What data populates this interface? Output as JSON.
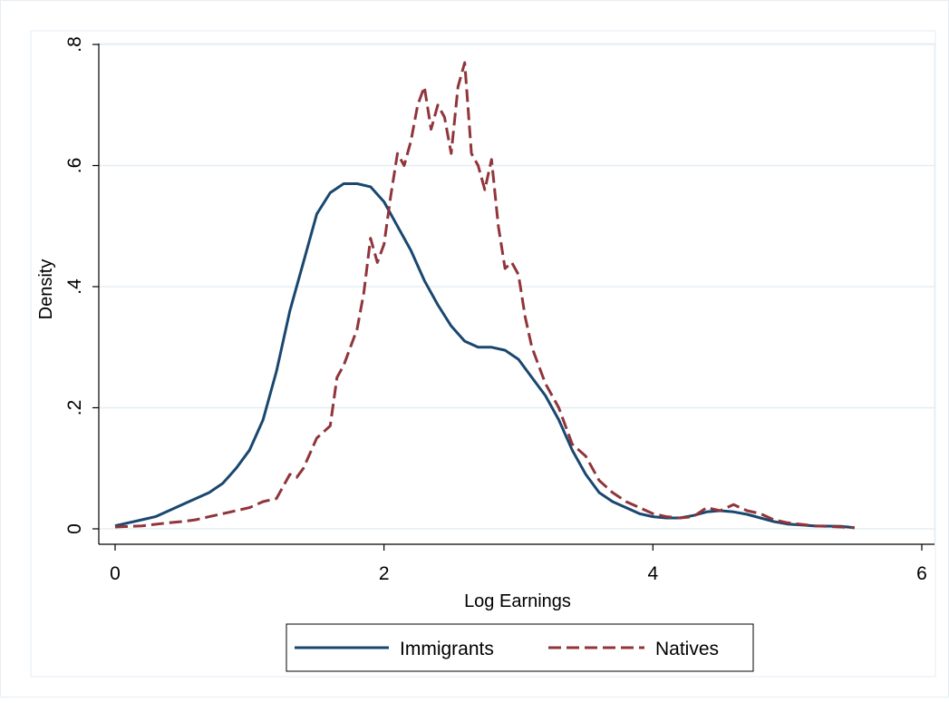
{
  "chart_data": {
    "type": "line",
    "title": "",
    "xlabel": "Log Earnings",
    "ylabel": "Density",
    "xlim": [
      0,
      6
    ],
    "ylim": [
      0,
      0.8
    ],
    "xticks": [
      0,
      2,
      4,
      6
    ],
    "xtick_labels": [
      "0",
      "2",
      "4",
      "6"
    ],
    "yticks": [
      0,
      0.2,
      0.4,
      0.6,
      0.8
    ],
    "ytick_labels": [
      "0",
      ".2",
      ".4",
      ".6",
      ".8"
    ],
    "grid": true,
    "legend_position": "bottom",
    "series": [
      {
        "name": "Immigrants",
        "color": "#1a476f",
        "dash": "solid",
        "x": [
          0,
          0.1,
          0.2,
          0.3,
          0.4,
          0.5,
          0.6,
          0.7,
          0.8,
          0.9,
          1.0,
          1.1,
          1.2,
          1.3,
          1.4,
          1.5,
          1.6,
          1.7,
          1.8,
          1.9,
          2.0,
          2.1,
          2.2,
          2.3,
          2.4,
          2.5,
          2.6,
          2.7,
          2.8,
          2.9,
          3.0,
          3.1,
          3.2,
          3.3,
          3.4,
          3.5,
          3.6,
          3.7,
          3.8,
          3.9,
          4.0,
          4.1,
          4.2,
          4.3,
          4.4,
          4.5,
          4.6,
          4.7,
          4.8,
          4.9,
          5.0,
          5.2,
          5.4,
          5.5
        ],
        "y": [
          0.005,
          0.01,
          0.015,
          0.02,
          0.03,
          0.04,
          0.05,
          0.06,
          0.075,
          0.1,
          0.13,
          0.18,
          0.26,
          0.36,
          0.44,
          0.52,
          0.555,
          0.57,
          0.57,
          0.565,
          0.54,
          0.5,
          0.46,
          0.41,
          0.37,
          0.335,
          0.31,
          0.3,
          0.3,
          0.295,
          0.28,
          0.25,
          0.22,
          0.18,
          0.13,
          0.09,
          0.06,
          0.045,
          0.035,
          0.025,
          0.02,
          0.018,
          0.018,
          0.022,
          0.028,
          0.03,
          0.028,
          0.024,
          0.018,
          0.012,
          0.008,
          0.005,
          0.004,
          0.002
        ]
      },
      {
        "name": "Natives",
        "color": "#90353b",
        "dash": "dashed",
        "x": [
          0,
          0.2,
          0.4,
          0.5,
          0.6,
          0.7,
          0.8,
          0.9,
          1.0,
          1.1,
          1.2,
          1.3,
          1.35,
          1.4,
          1.5,
          1.6,
          1.65,
          1.7,
          1.75,
          1.8,
          1.85,
          1.9,
          1.95,
          2.0,
          2.05,
          2.1,
          2.15,
          2.2,
          2.25,
          2.3,
          2.35,
          2.4,
          2.45,
          2.5,
          2.55,
          2.6,
          2.65,
          2.7,
          2.75,
          2.8,
          2.85,
          2.9,
          2.95,
          3.0,
          3.05,
          3.1,
          3.2,
          3.3,
          3.4,
          3.5,
          3.6,
          3.7,
          3.8,
          3.9,
          4.0,
          4.1,
          4.2,
          4.3,
          4.4,
          4.5,
          4.6,
          4.7,
          4.8,
          4.9,
          5.0,
          5.2,
          5.4,
          5.5
        ],
        "y": [
          0.003,
          0.005,
          0.01,
          0.012,
          0.015,
          0.02,
          0.025,
          0.03,
          0.035,
          0.045,
          0.05,
          0.09,
          0.085,
          0.1,
          0.15,
          0.17,
          0.25,
          0.27,
          0.3,
          0.33,
          0.39,
          0.48,
          0.44,
          0.47,
          0.55,
          0.62,
          0.6,
          0.64,
          0.7,
          0.73,
          0.66,
          0.7,
          0.68,
          0.62,
          0.73,
          0.77,
          0.62,
          0.6,
          0.56,
          0.61,
          0.5,
          0.43,
          0.44,
          0.42,
          0.35,
          0.3,
          0.24,
          0.2,
          0.14,
          0.12,
          0.08,
          0.06,
          0.045,
          0.035,
          0.025,
          0.02,
          0.018,
          0.02,
          0.035,
          0.03,
          0.04,
          0.03,
          0.025,
          0.015,
          0.01,
          0.005,
          0.003,
          0.002
        ]
      }
    ]
  }
}
